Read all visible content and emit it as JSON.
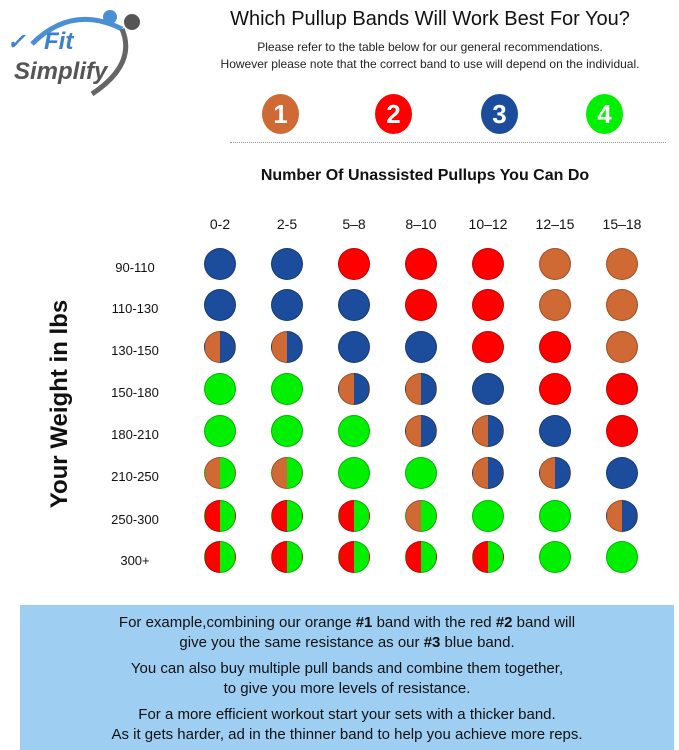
{
  "logo": {
    "text_1": "Fit",
    "text_2": "Simplify"
  },
  "header": {
    "title": "Which Pullup Bands Will Work Best For You?",
    "subtitle_1": "Please refer to the table below for our general recommendations.",
    "subtitle_2": "However please note that the correct band to use will depend on the individual."
  },
  "bands": [
    {
      "number": "1",
      "color": "#cf6a34"
    },
    {
      "number": "2",
      "color": "#ff0000"
    },
    {
      "number": "3",
      "color": "#1c4c9c"
    },
    {
      "number": "4",
      "color": "#00f000"
    }
  ],
  "chart_data": {
    "type": "table",
    "title": "Number Of Unassisted Pullups You Can Do",
    "ylabel": "Your Weight in lbs",
    "columns": [
      "0-2",
      "2-5",
      "5–8",
      "8–10",
      "10–12",
      "12–15",
      "15–18"
    ],
    "rows": [
      "90-110",
      "110-130",
      "130-150",
      "150-180",
      "180-210",
      "210-250",
      "250-300",
      "300+"
    ],
    "cells": [
      [
        "3",
        "3",
        "2",
        "2",
        "2",
        "1",
        "1"
      ],
      [
        "3",
        "3",
        "3",
        "2",
        "2",
        "1",
        "1"
      ],
      [
        "1+3",
        "1+3",
        "3",
        "3",
        "2",
        "2",
        "1"
      ],
      [
        "4",
        "4",
        "1+3",
        "1+3",
        "3",
        "2",
        "2"
      ],
      [
        "4",
        "4",
        "4",
        "1+3",
        "1+3",
        "3",
        "2"
      ],
      [
        "1+4",
        "1+4",
        "4",
        "4",
        "1+3",
        "1+3",
        "3"
      ],
      [
        "2+4",
        "2+4",
        "2+4",
        "1+4",
        "4",
        "4",
        "1+3"
      ],
      [
        "2+4",
        "2+4",
        "2+4",
        "2+4",
        "2+4",
        "4",
        "4"
      ]
    ]
  },
  "note": {
    "line_1a": "For example,combining our orange ",
    "line_1b": "#1",
    "line_1c": " band with the red ",
    "line_1d": "#2",
    "line_1e": " band will",
    "line_2a": "give you the same resistance as our ",
    "line_2b": "#3",
    "line_2c": " blue band.",
    "line_3": "You can also buy multiple pull bands and combine them together,",
    "line_4": "to give you more levels of resistance.",
    "line_5": "For a more efficient workout start your sets with a thicker band.",
    "line_6": "As it gets harder, ad in the thinner band to help you achieve more reps."
  }
}
